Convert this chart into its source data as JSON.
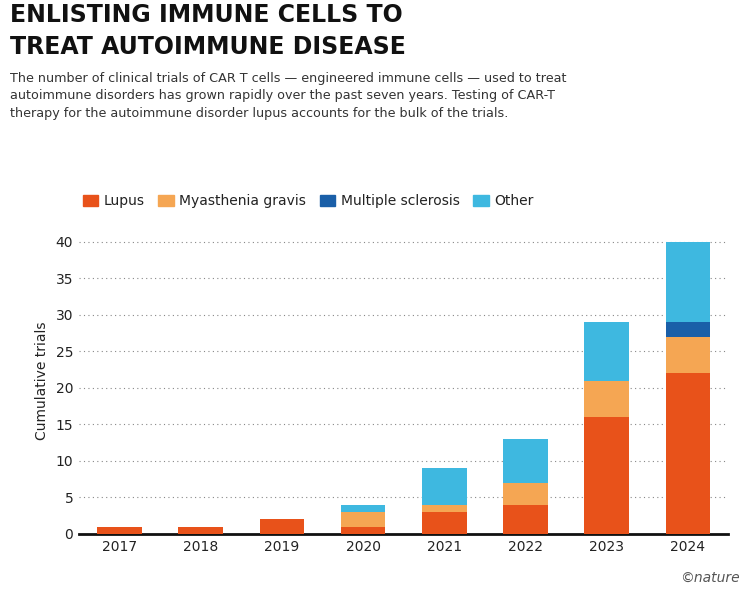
{
  "years": [
    "2017",
    "2018",
    "2019",
    "2020",
    "2021",
    "2022",
    "2023",
    "2024"
  ],
  "lupus": [
    1,
    1,
    2,
    1,
    3,
    4,
    16,
    22
  ],
  "myasthenia_gravis": [
    0,
    0,
    0,
    2,
    1,
    3,
    5,
    5
  ],
  "multiple_sclerosis": [
    0,
    0,
    0,
    0,
    0,
    0,
    0,
    2
  ],
  "other": [
    0,
    0,
    0,
    1,
    5,
    6,
    8,
    11
  ],
  "colors": {
    "lupus": "#e8521a",
    "myasthenia_gravis": "#f5a653",
    "multiple_sclerosis": "#1a5fa8",
    "other": "#3eb8e0"
  },
  "title_line1": "ENLISTING IMMUNE CELLS TO",
  "title_line2": "TREAT AUTOIMMUNE DISEASE",
  "subtitle": "The number of clinical trials of CAR T cells — engineered immune cells — used to treat\nautoimmune disorders has grown rapidly over the past seven years. Testing of CAR-T\ntherapy for the autoimmune disorder lupus accounts for the bulk of the trials.",
  "ylabel": "Cumulative trials",
  "ylim": [
    0,
    42
  ],
  "yticks": [
    0,
    5,
    10,
    15,
    20,
    25,
    30,
    35,
    40
  ],
  "legend_labels": [
    "Lupus",
    "Myasthenia gravis",
    "Multiple sclerosis",
    "Other"
  ],
  "bg_color": "#ffffff",
  "watermark": "©nature"
}
